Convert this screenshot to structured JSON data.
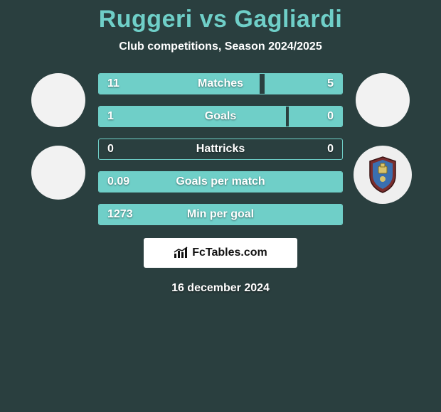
{
  "title": {
    "left": "Ruggeri",
    "vs": "vs",
    "right": "Gagliardi"
  },
  "subtitle": "Club competitions, Season 2024/2025",
  "colors": {
    "accent": "#6fcfc8",
    "bg": "#2a3f3f",
    "text": "#ffffff",
    "brand_bg": "#ffffff",
    "brand_text": "#111111"
  },
  "bars": [
    {
      "label": "Matches",
      "left": "11",
      "right": "5",
      "left_pct": 66,
      "right_pct": 32
    },
    {
      "label": "Goals",
      "left": "1",
      "right": "0",
      "left_pct": 77,
      "right_pct": 22
    },
    {
      "label": "Hattricks",
      "left": "0",
      "right": "0",
      "left_pct": 0,
      "right_pct": 0
    },
    {
      "label": "Goals per match",
      "left": "0.09",
      "right": "",
      "left_pct": 100,
      "right_pct": 0
    },
    {
      "label": "Min per goal",
      "left": "1273",
      "right": "",
      "left_pct": 100,
      "right_pct": 0
    }
  ],
  "brand": "FcTables.com",
  "date": "16 december 2024"
}
